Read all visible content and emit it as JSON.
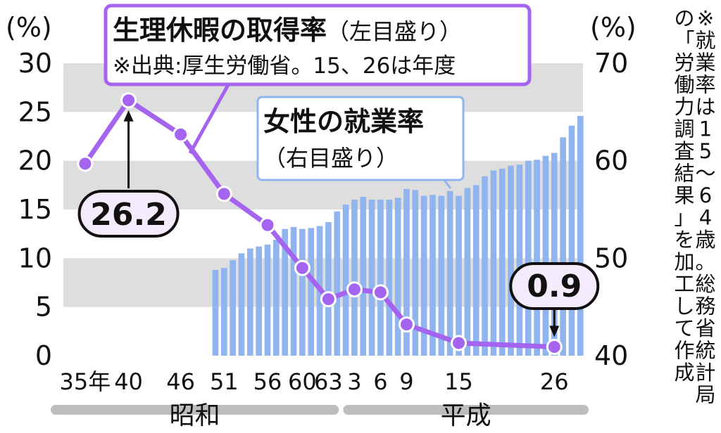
{
  "colors": {
    "sick_leave_line": "#a564f0",
    "employment_bar": "#8fb4ee",
    "band": "#dedede",
    "era_bar": "#bdbdbd",
    "callout_fill": "#f4ecfd"
  },
  "chart_data": {
    "type": "bar+line",
    "left_axis": {
      "unit_label": "(%)",
      "ylim": [
        0,
        30
      ],
      "ticks": [
        "0",
        "5",
        "10",
        "15",
        "20",
        "25",
        "30"
      ]
    },
    "right_axis": {
      "unit_label": "(%)",
      "ylim": [
        40,
        70
      ],
      "ticks": [
        "40",
        "50",
        "60",
        "70"
      ]
    },
    "x_axis": {
      "ticks": [
        {
          "label": "35年",
          "year": 1960
        },
        {
          "label": "40",
          "year": 1965
        },
        {
          "label": "46",
          "year": 1971
        },
        {
          "label": "51",
          "year": 1976
        },
        {
          "label": "56",
          "year": 1981
        },
        {
          "label": "60",
          "year": 1985
        },
        {
          "label": "63",
          "year": 1988
        },
        {
          "label": "3",
          "year": 1991
        },
        {
          "label": "6",
          "year": 1994
        },
        {
          "label": "9",
          "year": 1997
        },
        {
          "label": "15",
          "year": 2003
        },
        {
          "label": "26",
          "year": 2014
        }
      ],
      "eras": [
        {
          "label": "昭和",
          "from": 1957.5,
          "to": 1989.2
        },
        {
          "label": "平成",
          "from": 1989.7,
          "to": 2017.3
        }
      ]
    },
    "line_series": {
      "name": "生理休暇の取得率",
      "axis": "left",
      "points": [
        {
          "x": 1960,
          "y": 19.7
        },
        {
          "x": 1965,
          "y": 26.2
        },
        {
          "x": 1971,
          "y": 22.7
        },
        {
          "x": 1976,
          "y": 16.6
        },
        {
          "x": 1981,
          "y": 13.4
        },
        {
          "x": 1985,
          "y": 9.0
        },
        {
          "x": 1988,
          "y": 5.8
        },
        {
          "x": 1991,
          "y": 6.8
        },
        {
          "x": 1994,
          "y": 6.5
        },
        {
          "x": 1997,
          "y": 3.2
        },
        {
          "x": 2003,
          "y": 1.3
        },
        {
          "x": 2014,
          "y": 0.9
        }
      ]
    },
    "bar_series": {
      "name": "女性の就業率",
      "axis": "right",
      "x": [
        1975,
        1976,
        1977,
        1978,
        1979,
        1980,
        1981,
        1982,
        1983,
        1984,
        1985,
        1986,
        1987,
        1988,
        1989,
        1990,
        1991,
        1992,
        1993,
        1994,
        1995,
        1996,
        1997,
        1998,
        1999,
        2000,
        2001,
        2002,
        2003,
        2004,
        2005,
        2006,
        2007,
        2008,
        2009,
        2010,
        2011,
        2012,
        2013,
        2014,
        2015,
        2016,
        2017
      ],
      "values": [
        48.8,
        49.0,
        49.8,
        50.5,
        51.0,
        51.2,
        51.4,
        51.9,
        53.0,
        53.2,
        53.0,
        53.1,
        53.3,
        53.7,
        54.8,
        55.5,
        56.0,
        56.3,
        56.0,
        56.0,
        56.0,
        56.2,
        57.1,
        57.0,
        56.4,
        56.5,
        56.4,
        56.9,
        56.4,
        57.2,
        57.5,
        58.4,
        59.0,
        59.2,
        59.5,
        59.6,
        60.0,
        60.1,
        60.5,
        60.8,
        62.4,
        63.6,
        64.6
      ]
    },
    "callouts": {
      "max": {
        "text": "26.2",
        "x": 1965,
        "y": 26.2
      },
      "min": {
        "text": "0.9",
        "x": 2014,
        "y": 0.9
      }
    },
    "sick_leave_title": {
      "main": "生理休暇の取得率",
      "sub": "（左目盛り）",
      "note": "※出典:厚生労働省。15、26は年度"
    },
    "employment_title": {
      "main": "女性の就業率",
      "sub": "（右目盛り）"
    },
    "side_note": "※就業率は15～64歳。総務省統計局の「労働力調査結果」を加工して作成"
  }
}
